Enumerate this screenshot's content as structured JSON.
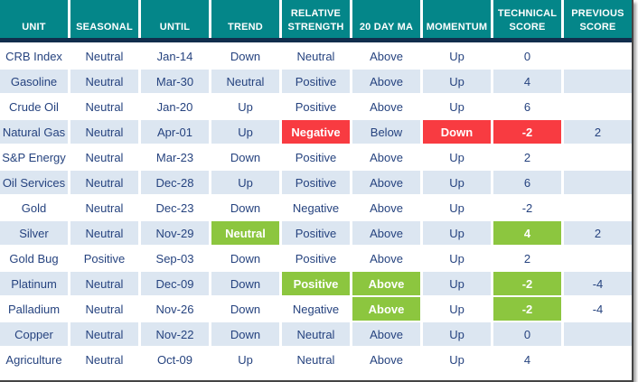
{
  "colors": {
    "header_bg": "#048689",
    "separator": "#112e4d",
    "alt_row": "#dce6f1",
    "negative": "#f83b41",
    "positive": "#8cc63f",
    "text": "#26437f",
    "frame_border": "#444444"
  },
  "chart_data": {
    "type": "table",
    "columns": [
      "UNIT",
      "SEASONAL",
      "UNTIL",
      "TREND",
      "RELATIVE STRENGTH",
      "20 DAY MA",
      "MOMENTUM",
      "TECHNICAL SCORE",
      "PREVIOUS SCORE"
    ],
    "column_keys": [
      "unit",
      "seasonal",
      "until",
      "trend",
      "relative-strength",
      "20-day-ma",
      "momentum",
      "technical-score",
      "previous-score"
    ],
    "rows": [
      {
        "cells": [
          {
            "t": "CRB Index"
          },
          {
            "t": "Neutral"
          },
          {
            "t": "Jan-14"
          },
          {
            "t": "Down"
          },
          {
            "t": "Neutral"
          },
          {
            "t": "Above"
          },
          {
            "t": "Up"
          },
          {
            "t": "0"
          },
          {
            "t": ""
          }
        ]
      },
      {
        "cells": [
          {
            "t": "Gasoline"
          },
          {
            "t": "Neutral"
          },
          {
            "t": "Mar-30"
          },
          {
            "t": "Neutral"
          },
          {
            "t": "Positive"
          },
          {
            "t": "Above"
          },
          {
            "t": "Up"
          },
          {
            "t": "4"
          },
          {
            "t": ""
          }
        ]
      },
      {
        "cells": [
          {
            "t": "Crude Oil"
          },
          {
            "t": "Neutral"
          },
          {
            "t": "Jan-20"
          },
          {
            "t": "Up"
          },
          {
            "t": "Positive"
          },
          {
            "t": "Above"
          },
          {
            "t": "Up"
          },
          {
            "t": "6"
          },
          {
            "t": ""
          }
        ]
      },
      {
        "cells": [
          {
            "t": "Natural Gas"
          },
          {
            "t": "Neutral"
          },
          {
            "t": "Apr-01"
          },
          {
            "t": "Up"
          },
          {
            "t": "Negative",
            "h": "red"
          },
          {
            "t": "Below"
          },
          {
            "t": "Down",
            "h": "red"
          },
          {
            "t": "-2",
            "h": "red"
          },
          {
            "t": "2"
          }
        ]
      },
      {
        "cells": [
          {
            "t": "S&P Energy"
          },
          {
            "t": "Neutral"
          },
          {
            "t": "Mar-23"
          },
          {
            "t": "Down"
          },
          {
            "t": "Positive"
          },
          {
            "t": "Above"
          },
          {
            "t": "Up"
          },
          {
            "t": "2"
          },
          {
            "t": ""
          }
        ]
      },
      {
        "cells": [
          {
            "t": "Oil Services"
          },
          {
            "t": "Neutral"
          },
          {
            "t": "Dec-28"
          },
          {
            "t": "Up"
          },
          {
            "t": "Positive"
          },
          {
            "t": "Above"
          },
          {
            "t": "Up"
          },
          {
            "t": "6"
          },
          {
            "t": ""
          }
        ]
      },
      {
        "cells": [
          {
            "t": "Gold"
          },
          {
            "t": "Neutral"
          },
          {
            "t": "Dec-23"
          },
          {
            "t": "Down"
          },
          {
            "t": "Negative"
          },
          {
            "t": "Above"
          },
          {
            "t": "Up"
          },
          {
            "t": "-2"
          },
          {
            "t": ""
          }
        ]
      },
      {
        "cells": [
          {
            "t": "Silver"
          },
          {
            "t": "Neutral"
          },
          {
            "t": "Nov-29"
          },
          {
            "t": "Neutral",
            "h": "green"
          },
          {
            "t": "Positive"
          },
          {
            "t": "Above"
          },
          {
            "t": "Up"
          },
          {
            "t": "4",
            "h": "green"
          },
          {
            "t": "2"
          }
        ]
      },
      {
        "cells": [
          {
            "t": "Gold Bug"
          },
          {
            "t": "Positive"
          },
          {
            "t": "Sep-03"
          },
          {
            "t": "Down"
          },
          {
            "t": "Positive"
          },
          {
            "t": "Above"
          },
          {
            "t": "Up"
          },
          {
            "t": "2"
          },
          {
            "t": ""
          }
        ]
      },
      {
        "cells": [
          {
            "t": "Platinum"
          },
          {
            "t": "Neutral"
          },
          {
            "t": "Dec-09"
          },
          {
            "t": "Down"
          },
          {
            "t": "Positive",
            "h": "green"
          },
          {
            "t": "Above",
            "h": "green"
          },
          {
            "t": "Up"
          },
          {
            "t": "-2",
            "h": "green"
          },
          {
            "t": "-4"
          }
        ]
      },
      {
        "cells": [
          {
            "t": "Palladium"
          },
          {
            "t": "Neutral"
          },
          {
            "t": "Nov-26"
          },
          {
            "t": "Down"
          },
          {
            "t": "Negative"
          },
          {
            "t": "Above",
            "h": "green"
          },
          {
            "t": "Up"
          },
          {
            "t": "-2",
            "h": "green"
          },
          {
            "t": "-4"
          }
        ]
      },
      {
        "cells": [
          {
            "t": "Copper"
          },
          {
            "t": "Neutral"
          },
          {
            "t": "Nov-22"
          },
          {
            "t": "Down"
          },
          {
            "t": "Neutral"
          },
          {
            "t": "Above"
          },
          {
            "t": "Up"
          },
          {
            "t": "0"
          },
          {
            "t": ""
          }
        ]
      },
      {
        "cells": [
          {
            "t": "Agriculture"
          },
          {
            "t": "Neutral"
          },
          {
            "t": "Oct-09"
          },
          {
            "t": "Up"
          },
          {
            "t": "Neutral"
          },
          {
            "t": "Above"
          },
          {
            "t": "Up"
          },
          {
            "t": "4"
          },
          {
            "t": ""
          }
        ]
      }
    ]
  }
}
